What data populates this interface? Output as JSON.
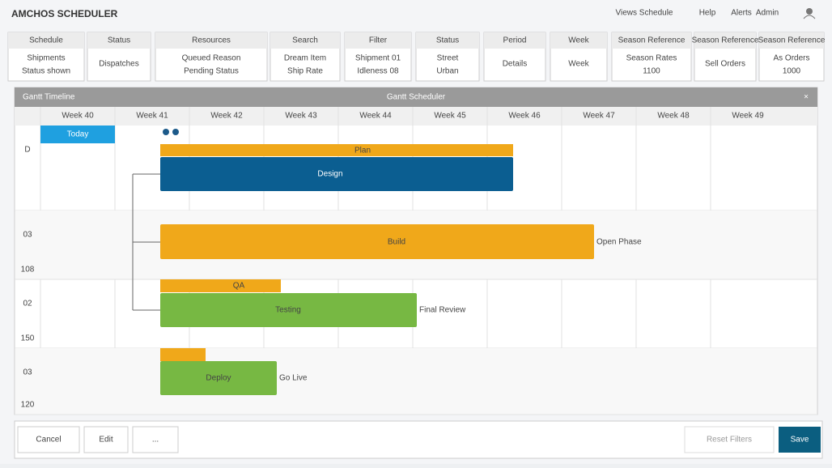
{
  "header": {
    "title": "AMCHOS SCHEDULER",
    "nav": [
      "Views Schedule",
      "Help",
      "Alerts",
      "Admin"
    ]
  },
  "filters": [
    {
      "label": "Schedule",
      "lines": [
        "Shipments",
        "Status shown"
      ]
    },
    {
      "label": "Status",
      "lines": [
        "Dispatches"
      ]
    },
    {
      "label": "Resources",
      "lines": [
        "Queued Reason",
        "Pending Status"
      ]
    },
    {
      "label": "Search",
      "lines": [
        "Dream Item",
        "Ship Rate"
      ]
    },
    {
      "label": "Filter",
      "lines": [
        "Shipment 01",
        "Idleness 08"
      ]
    },
    {
      "label": "Status",
      "lines": [
        "Street",
        "Urban"
      ]
    },
    {
      "label": "Period",
      "lines": [
        "Details"
      ]
    },
    {
      "label": "Week",
      "lines": [
        "Week"
      ]
    },
    {
      "label": "Season Reference",
      "lines": [
        "Season Rates",
        "1100"
      ]
    },
    {
      "label": "Season Reference",
      "lines": [
        "Sell Orders"
      ]
    },
    {
      "label": "Season Reference",
      "lines": [
        "As Orders",
        "1000"
      ]
    }
  ],
  "gantt": {
    "left_title": "Gantt Timeline",
    "title": "Gantt Scheduler",
    "columns": [
      "Week 40",
      "Week 41",
      "Week 42",
      "Week 43",
      "Week 44",
      "Week 45",
      "Week 46",
      "Week 47",
      "Week 48",
      "Week 49"
    ],
    "today": "Today",
    "rows": [
      {
        "label": "D",
        "sub": ""
      },
      {
        "label": "03",
        "sub": "108"
      },
      {
        "label": "02",
        "sub": "150"
      },
      {
        "label": "03",
        "sub": "120"
      }
    ],
    "bars": {
      "top": "Plan",
      "design": "Design",
      "build": "Build",
      "build_note": "Open Phase",
      "qa": "QA",
      "testing": "Testing",
      "testing_note": "Final Review",
      "deploy": "Deploy",
      "deploy_note": "Go Live"
    }
  },
  "footer": {
    "buttons": [
      "Cancel",
      "Edit",
      "..."
    ],
    "reset": "Reset Filters",
    "save": "Save"
  }
}
